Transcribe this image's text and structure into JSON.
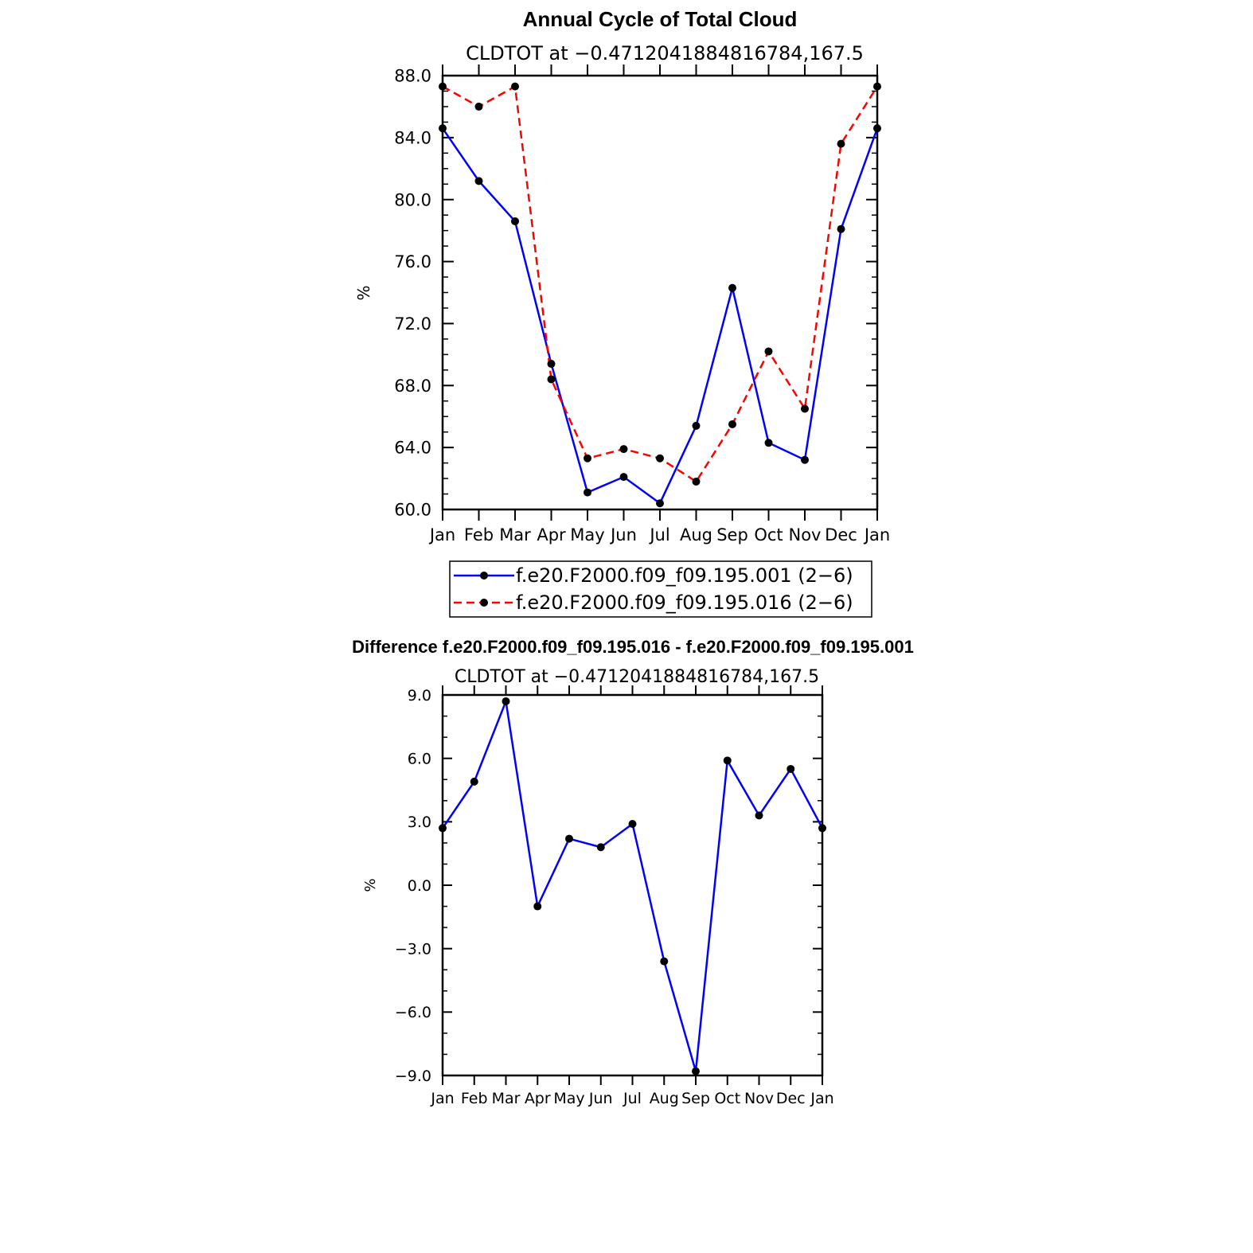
{
  "chart_data": [
    {
      "type": "line",
      "title": "Annual Cycle of Total Cloud",
      "subtitle": "CLDTOT at −0.4712041884816784,167.5",
      "ylabel": "%",
      "xlabel": "",
      "categories": [
        "Jan",
        "Feb",
        "Mar",
        "Apr",
        "May",
        "Jun",
        "Jul",
        "Aug",
        "Sep",
        "Oct",
        "Nov",
        "Dec",
        "Jan"
      ],
      "ylim": [
        60,
        88
      ],
      "y_ticks": [
        "60.0",
        "64.0",
        "68.0",
        "72.0",
        "76.0",
        "80.0",
        "84.0",
        "88.0"
      ],
      "grid": false,
      "legend_position": "bottom",
      "series": [
        {
          "name": "f.e20.F2000.f09_f09.195.001 (2−6)",
          "color": "#0000ff",
          "style": "solid",
          "values": [
            84.6,
            81.2,
            78.6,
            69.4,
            61.1,
            62.1,
            60.4,
            65.4,
            74.3,
            64.3,
            63.2,
            78.1,
            84.6
          ]
        },
        {
          "name": "f.e20.F2000.f09_f09.195.016 (2−6)",
          "color": "#ff0000",
          "style": "dashed",
          "values": [
            87.3,
            86.0,
            87.3,
            68.4,
            63.3,
            63.9,
            63.3,
            61.8,
            65.5,
            70.2,
            66.5,
            83.6,
            87.3
          ]
        }
      ]
    },
    {
      "type": "line",
      "title": "Difference f.e20.F2000.f09_f09.195.016 - f.e20.F2000.f09_f09.195.001",
      "subtitle": "CLDTOT at −0.4712041884816784,167.5",
      "ylabel": "%",
      "xlabel": "",
      "categories": [
        "Jan",
        "Feb",
        "Mar",
        "Apr",
        "May",
        "Jun",
        "Jul",
        "Aug",
        "Sep",
        "Oct",
        "Nov",
        "Dec",
        "Jan"
      ],
      "ylim": [
        -9,
        9
      ],
      "y_ticks": [
        "−9.0",
        "−6.0",
        "−3.0",
        "0.0",
        "3.0",
        "6.0",
        "9.0"
      ],
      "grid": false,
      "series": [
        {
          "name": "difference",
          "color": "#0000ff",
          "style": "solid",
          "values": [
            2.7,
            4.9,
            8.7,
            -1.0,
            2.2,
            1.8,
            2.9,
            -3.6,
            -8.8,
            5.9,
            3.3,
            5.5,
            2.7
          ]
        }
      ]
    }
  ]
}
